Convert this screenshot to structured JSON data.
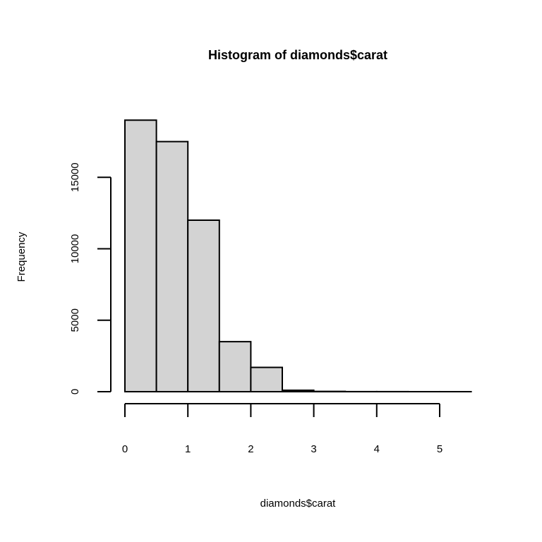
{
  "chart_data": {
    "type": "bar",
    "title": "Histogram of diamonds$carat",
    "xlabel": "diamonds$carat",
    "ylabel": "Frequency",
    "bins": [
      {
        "start": 0.0,
        "end": 0.5,
        "count": 19000
      },
      {
        "start": 0.5,
        "end": 1.0,
        "count": 17500
      },
      {
        "start": 1.0,
        "end": 1.5,
        "count": 12000
      },
      {
        "start": 1.5,
        "end": 2.0,
        "count": 3500
      },
      {
        "start": 2.0,
        "end": 2.5,
        "count": 1700
      },
      {
        "start": 2.5,
        "end": 3.0,
        "count": 100
      },
      {
        "start": 3.0,
        "end": 3.5,
        "count": 20
      },
      {
        "start": 3.5,
        "end": 4.0,
        "count": 5
      },
      {
        "start": 4.0,
        "end": 4.5,
        "count": 5
      },
      {
        "start": 4.5,
        "end": 5.0,
        "count": 1
      },
      {
        "start": 5.0,
        "end": 5.5,
        "count": 1
      }
    ],
    "xlim": [
      0,
      5.5
    ],
    "ylim": [
      0,
      19000
    ],
    "x_ticks": [
      0,
      1,
      2,
      3,
      4,
      5
    ],
    "x_tick_labels": [
      "0",
      "1",
      "2",
      "3",
      "4",
      "5"
    ],
    "y_ticks": [
      0,
      5000,
      10000,
      15000
    ],
    "y_tick_labels": [
      "0",
      "5000",
      "10000",
      "15000"
    ],
    "bar_fill": "#d3d3d3",
    "bar_stroke": "#000000",
    "grid": false,
    "legend": "none"
  }
}
